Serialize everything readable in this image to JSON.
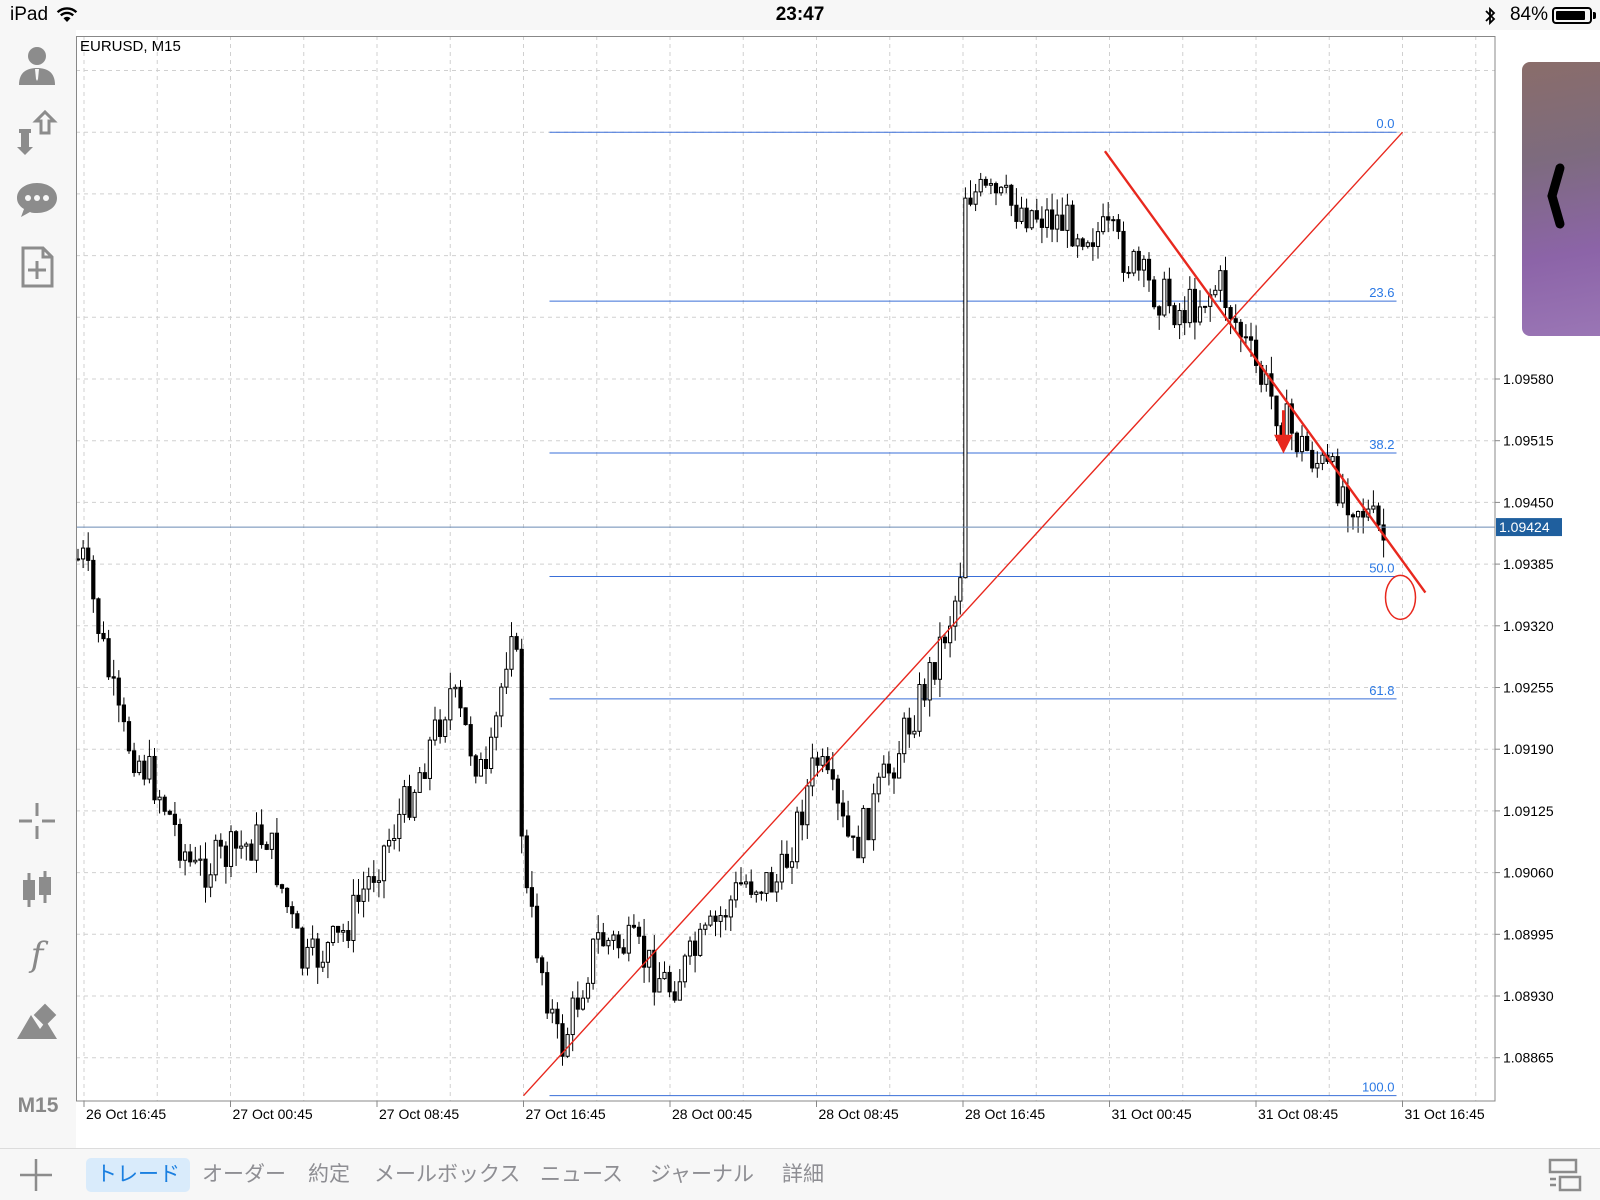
{
  "status_bar": {
    "device": "iPad",
    "time": "23:47",
    "battery": "84%",
    "icons": [
      "wifi-icon",
      "bluetooth-icon",
      "battery-icon"
    ]
  },
  "left_toolbar": {
    "icons": [
      "account-icon",
      "trade-icon",
      "chat-icon",
      "new-order-icon",
      "crosshair-icon",
      "chart-type-icon",
      "indicators-icon",
      "objects-icon"
    ],
    "indicators_glyph": "f",
    "timeframe": "M15"
  },
  "chart": {
    "symbol_label": "EURUSD, M15",
    "price_labels": [
      "1.09580",
      "1.09515",
      "1.09450",
      "1.09385",
      "1.09320",
      "1.09255",
      "1.09190",
      "1.09125",
      "1.09060",
      "1.08995",
      "1.08930",
      "1.08865"
    ],
    "current_price": "1.09424",
    "time_labels": [
      "26 Oct 16:45",
      "27 Oct 00:45",
      "27 Oct 08:45",
      "27 Oct 16:45",
      "28 Oct 00:45",
      "28 Oct 08:45",
      "28 Oct 16:45",
      "31 Oct 00:45",
      "31 Oct 08:45",
      "31 Oct 16:45"
    ],
    "fibonacci_levels": [
      "0.0",
      "23.6",
      "38.2",
      "50.0",
      "61.8",
      "100.0"
    ],
    "colors": {
      "fib": "#3a6fd8",
      "fib_text": "#2a78e4",
      "trend": "#e8281e",
      "price_tag": "#1f5f9e",
      "candle": "#000000"
    }
  },
  "chart_data": {
    "type": "candlestick",
    "symbol": "EURUSD",
    "timeframe": "M15",
    "price_axis_ticks": [
      1.0958,
      1.09515,
      1.0945,
      1.09385,
      1.0932,
      1.09255,
      1.0919,
      1.09125,
      1.0906,
      1.08995,
      1.0893,
      1.08865
    ],
    "time_axis_ticks": [
      "26 Oct 16:45",
      "27 Oct 00:45",
      "27 Oct 08:45",
      "27 Oct 16:45",
      "28 Oct 00:45",
      "28 Oct 08:45",
      "28 Oct 16:45",
      "31 Oct 00:45",
      "31 Oct 08:45",
      "31 Oct 16:45"
    ],
    "current_price": 1.09424,
    "fibonacci": [
      {
        "level": "0.0",
        "price": 1.0984
      },
      {
        "level": "23.6",
        "price": 1.09662
      },
      {
        "level": "38.2",
        "price": 1.09502
      },
      {
        "level": "50.0",
        "price": 1.09372
      },
      {
        "level": "61.8",
        "price": 1.09243
      },
      {
        "level": "100.0",
        "price": 1.08825
      }
    ],
    "close_path": [
      [
        "26 Oct 16:45",
        1.0939
      ],
      [
        "26 Oct 18:45",
        1.0921
      ],
      [
        "26 Oct 20:45",
        1.0915
      ],
      [
        "26 Oct 22:45",
        1.0906
      ],
      [
        "27 Oct 00:45",
        1.0908
      ],
      [
        "27 Oct 02:45",
        1.091
      ],
      [
        "27 Oct 04:45",
        1.0896
      ],
      [
        "27 Oct 06:45",
        1.0899
      ],
      [
        "27 Oct 08:45",
        1.0907
      ],
      [
        "27 Oct 10:45",
        1.0915
      ],
      [
        "27 Oct 12:45",
        1.0925
      ],
      [
        "27 Oct 14:45",
        1.0915
      ],
      [
        "27 Oct 16:15",
        1.0935
      ],
      [
        "27 Oct 16:45",
        1.0905
      ],
      [
        "27 Oct 18:45",
        1.0887
      ],
      [
        "27 Oct 20:45",
        1.0899
      ],
      [
        "27 Oct 22:45",
        1.0898
      ],
      [
        "28 Oct 00:45",
        1.0894
      ],
      [
        "28 Oct 02:45",
        1.0899
      ],
      [
        "28 Oct 04:45",
        1.0905
      ],
      [
        "28 Oct 06:45",
        1.0905
      ],
      [
        "28 Oct 08:45",
        1.0918
      ],
      [
        "28 Oct 10:45",
        1.0908
      ],
      [
        "28 Oct 12:45",
        1.0917
      ],
      [
        "28 Oct 14:45",
        1.0926
      ],
      [
        "28 Oct 16:15",
        1.0934
      ],
      [
        "28 Oct 16:45",
        1.094
      ],
      [
        "28 Oct 17:30",
        1.0976
      ],
      [
        "28 Oct 20:00",
        1.0972
      ],
      [
        "28 Oct 22:30",
        1.0978
      ],
      [
        "31 Oct 00:45",
        1.0973
      ],
      [
        "31 Oct 02:45",
        1.0968
      ],
      [
        "31 Oct 04:45",
        1.0965
      ],
      [
        "31 Oct 06:45",
        1.0968
      ],
      [
        "31 Oct 08:45",
        1.0959
      ],
      [
        "31 Oct 10:45",
        1.0952
      ],
      [
        "31 Oct 12:45",
        1.0948
      ],
      [
        "31 Oct 14:45",
        1.0944
      ],
      [
        "31 Oct 15:45",
        1.0941
      ]
    ],
    "trend_lines": [
      {
        "from": [
          "27 Oct 16:45",
          1.08825
        ],
        "to": [
          "31 Oct 16:45",
          1.0984
        ],
        "color": "#e8281e"
      },
      {
        "from": [
          "31 Oct 00:30",
          1.0982
        ],
        "to": [
          "31 Oct 18:00",
          1.09355
        ],
        "color": "#e8281e"
      }
    ],
    "grid": true
  },
  "tabs": [
    {
      "label": "トレード",
      "active": true
    },
    {
      "label": "オーダー"
    },
    {
      "label": "約定"
    },
    {
      "label": "メールボックス"
    },
    {
      "label": "ニュース"
    },
    {
      "label": "ジャーナル"
    },
    {
      "label": "詳細"
    }
  ],
  "tab_bar_icons": [
    "plus-icon",
    "layout-icon"
  ]
}
